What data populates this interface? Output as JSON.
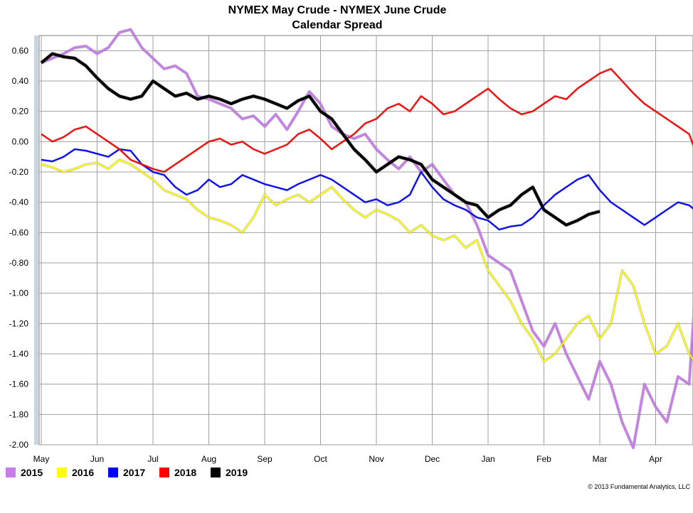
{
  "chart_data": {
    "type": "line",
    "title": "NYMEX May Crude - NYMEX June Crude",
    "subtitle": "Calendar Spread",
    "ylim": [
      -2.0,
      0.7
    ],
    "yticks": [
      "0.60",
      "0.40",
      "0.20",
      "0.00",
      "-0.20",
      "-0.40",
      "-0.60",
      "-0.80",
      "-1.00",
      "-1.20",
      "-1.40",
      "-1.60",
      "-1.80",
      "-2.00"
    ],
    "ytick_values": [
      0.6,
      0.4,
      0.2,
      0.0,
      -0.2,
      -0.4,
      -0.6,
      -0.8,
      -1.0,
      -1.2,
      -1.4,
      -1.6,
      -1.8,
      -2.0
    ],
    "x_categories": [
      "May",
      "Jun",
      "Jul",
      "Aug",
      "Sep",
      "Oct",
      "Nov",
      "Dec",
      "Jan",
      "Feb",
      "Mar",
      "Apr"
    ],
    "xlim": [
      0,
      11.7
    ],
    "grid": true,
    "legend_position": "bottom-left",
    "copyright": "© 2013 Fundamental Analytics, LLC",
    "series": [
      {
        "name": "2015",
        "color": "#c77ee8",
        "width": 3,
        "x": [
          0,
          0.2,
          0.4,
          0.6,
          0.8,
          1.0,
          1.2,
          1.4,
          1.6,
          1.8,
          2.0,
          2.2,
          2.4,
          2.6,
          2.8,
          3.0,
          3.2,
          3.4,
          3.6,
          3.8,
          4.0,
          4.2,
          4.4,
          4.6,
          4.8,
          5.0,
          5.2,
          5.4,
          5.6,
          5.8,
          6.0,
          6.2,
          6.4,
          6.6,
          6.8,
          7.0,
          7.2,
          7.4,
          7.6,
          7.8,
          8.0,
          8.2,
          8.4,
          8.6,
          8.8,
          9.0,
          9.2,
          9.4,
          9.6,
          9.8,
          10.0,
          10.2,
          10.4,
          10.6,
          10.8,
          11.0,
          11.2,
          11.4,
          11.6,
          11.7
        ],
        "y": [
          0.52,
          0.55,
          0.58,
          0.62,
          0.63,
          0.58,
          0.62,
          0.72,
          0.74,
          0.62,
          0.55,
          0.48,
          0.5,
          0.45,
          0.3,
          0.28,
          0.25,
          0.22,
          0.15,
          0.17,
          0.1,
          0.18,
          0.08,
          0.2,
          0.33,
          0.25,
          0.1,
          0.05,
          0.02,
          0.05,
          -0.05,
          -0.12,
          -0.18,
          -0.1,
          -0.2,
          -0.15,
          -0.25,
          -0.35,
          -0.4,
          -0.55,
          -0.75,
          -0.8,
          -0.85,
          -1.05,
          -1.25,
          -1.35,
          -1.2,
          -1.4,
          -1.55,
          -1.7,
          -1.45,
          -1.6,
          -1.85,
          -2.02,
          -1.6,
          -1.75,
          -1.85,
          -1.55,
          -1.6,
          -1.05
        ]
      },
      {
        "name": "2016",
        "color": "#ffff00",
        "width": 2,
        "x": [
          0,
          0.2,
          0.4,
          0.6,
          0.8,
          1.0,
          1.2,
          1.4,
          1.6,
          1.8,
          2.0,
          2.2,
          2.4,
          2.6,
          2.8,
          3.0,
          3.2,
          3.4,
          3.6,
          3.8,
          4.0,
          4.2,
          4.4,
          4.6,
          4.8,
          5.0,
          5.2,
          5.4,
          5.6,
          5.8,
          6.0,
          6.2,
          6.4,
          6.6,
          6.8,
          7.0,
          7.2,
          7.4,
          7.6,
          7.8,
          8.0,
          8.2,
          8.4,
          8.6,
          8.8,
          9.0,
          9.2,
          9.4,
          9.6,
          9.8,
          10.0,
          10.2,
          10.4,
          10.6,
          10.8,
          11.0,
          11.2,
          11.4,
          11.6,
          11.7
        ],
        "y": [
          -0.15,
          -0.17,
          -0.2,
          -0.18,
          -0.15,
          -0.14,
          -0.18,
          -0.12,
          -0.15,
          -0.2,
          -0.25,
          -0.32,
          -0.35,
          -0.38,
          -0.45,
          -0.5,
          -0.52,
          -0.55,
          -0.6,
          -0.5,
          -0.35,
          -0.42,
          -0.38,
          -0.35,
          -0.4,
          -0.35,
          -0.3,
          -0.38,
          -0.45,
          -0.5,
          -0.45,
          -0.48,
          -0.52,
          -0.6,
          -0.55,
          -0.62,
          -0.65,
          -0.62,
          -0.7,
          -0.65,
          -0.85,
          -0.95,
          -1.05,
          -1.2,
          -1.3,
          -1.45,
          -1.4,
          -1.3,
          -1.2,
          -1.15,
          -1.3,
          -1.2,
          -0.85,
          -0.95,
          -1.2,
          -1.4,
          -1.35,
          -1.2,
          -1.4,
          -1.45
        ]
      },
      {
        "name": "2017",
        "color": "#0000ff",
        "width": 2,
        "x": [
          0,
          0.2,
          0.4,
          0.6,
          0.8,
          1.0,
          1.2,
          1.4,
          1.6,
          1.8,
          2.0,
          2.2,
          2.4,
          2.6,
          2.8,
          3.0,
          3.2,
          3.4,
          3.6,
          3.8,
          4.0,
          4.2,
          4.4,
          4.6,
          4.8,
          5.0,
          5.2,
          5.4,
          5.6,
          5.8,
          6.0,
          6.2,
          6.4,
          6.6,
          6.8,
          7.0,
          7.2,
          7.4,
          7.6,
          7.8,
          8.0,
          8.2,
          8.4,
          8.6,
          8.8,
          9.0,
          9.2,
          9.4,
          9.6,
          9.8,
          10.0,
          10.2,
          10.4,
          10.6,
          10.8,
          11.0,
          11.2,
          11.4,
          11.6,
          11.7
        ],
        "y": [
          -0.12,
          -0.13,
          -0.1,
          -0.05,
          -0.06,
          -0.08,
          -0.1,
          -0.05,
          -0.06,
          -0.15,
          -0.2,
          -0.22,
          -0.3,
          -0.35,
          -0.32,
          -0.25,
          -0.3,
          -0.28,
          -0.22,
          -0.25,
          -0.28,
          -0.3,
          -0.32,
          -0.28,
          -0.25,
          -0.22,
          -0.25,
          -0.3,
          -0.35,
          -0.4,
          -0.38,
          -0.42,
          -0.4,
          -0.35,
          -0.2,
          -0.3,
          -0.38,
          -0.42,
          -0.45,
          -0.5,
          -0.52,
          -0.58,
          -0.56,
          -0.55,
          -0.5,
          -0.42,
          -0.35,
          -0.3,
          -0.25,
          -0.22,
          -0.32,
          -0.4,
          -0.45,
          -0.5,
          -0.55,
          -0.5,
          -0.45,
          -0.4,
          -0.42,
          -0.45
        ]
      },
      {
        "name": "2018",
        "color": "#ff0000",
        "width": 2,
        "x": [
          0,
          0.2,
          0.4,
          0.6,
          0.8,
          1.0,
          1.2,
          1.4,
          1.6,
          1.8,
          2.0,
          2.2,
          2.4,
          2.6,
          2.8,
          3.0,
          3.2,
          3.4,
          3.6,
          3.8,
          4.0,
          4.2,
          4.4,
          4.6,
          4.8,
          5.0,
          5.2,
          5.4,
          5.6,
          5.8,
          6.0,
          6.2,
          6.4,
          6.6,
          6.8,
          7.0,
          7.2,
          7.4,
          7.6,
          7.8,
          8.0,
          8.2,
          8.4,
          8.6,
          8.8,
          9.0,
          9.2,
          9.4,
          9.6,
          9.8,
          10.0,
          10.2,
          10.4,
          10.6,
          10.8,
          11.0,
          11.2,
          11.4,
          11.6,
          11.7
        ],
        "y": [
          0.05,
          0.0,
          0.03,
          0.08,
          0.1,
          0.05,
          0.0,
          -0.05,
          -0.12,
          -0.15,
          -0.18,
          -0.2,
          -0.15,
          -0.1,
          -0.05,
          0.0,
          0.02,
          -0.02,
          0.0,
          -0.05,
          -0.08,
          -0.05,
          -0.02,
          0.05,
          0.08,
          0.02,
          -0.05,
          0.0,
          0.05,
          0.12,
          0.15,
          0.22,
          0.25,
          0.2,
          0.3,
          0.25,
          0.18,
          0.2,
          0.25,
          0.3,
          0.35,
          0.28,
          0.22,
          0.18,
          0.2,
          0.25,
          0.3,
          0.28,
          0.35,
          0.4,
          0.45,
          0.48,
          0.4,
          0.32,
          0.25,
          0.2,
          0.15,
          0.1,
          0.05,
          -0.05
        ]
      },
      {
        "name": "2019",
        "color": "#000000",
        "width": 4,
        "x": [
          0,
          0.2,
          0.4,
          0.6,
          0.8,
          1.0,
          1.2,
          1.4,
          1.6,
          1.8,
          2.0,
          2.2,
          2.4,
          2.6,
          2.8,
          3.0,
          3.2,
          3.4,
          3.6,
          3.8,
          4.0,
          4.2,
          4.4,
          4.6,
          4.8,
          5.0,
          5.2,
          5.4,
          5.6,
          5.8,
          6.0,
          6.2,
          6.4,
          6.6,
          6.8,
          7.0,
          7.2,
          7.4,
          7.6,
          7.8,
          8.0,
          8.2,
          8.4,
          8.6,
          8.8,
          9.0,
          9.2,
          9.4,
          9.6,
          9.8,
          10.0,
          10.2,
          10.4,
          10.6,
          10.8,
          11.0,
          11.2,
          11.4,
          11.6,
          11.7
        ],
        "y": [
          0.52,
          0.58,
          0.56,
          0.55,
          0.5,
          0.42,
          0.35,
          0.3,
          0.28,
          0.3,
          0.4,
          0.35,
          0.3,
          0.32,
          0.28,
          0.3,
          0.28,
          0.25,
          0.28,
          0.3,
          0.28,
          0.25,
          0.22,
          0.27,
          0.3,
          0.2,
          0.15,
          0.05,
          -0.05,
          -0.12,
          -0.2,
          -0.15,
          -0.1,
          -0.12,
          -0.15,
          -0.25,
          -0.3,
          -0.35,
          -0.4,
          -0.42,
          -0.5,
          -0.45,
          -0.42,
          -0.35,
          -0.3,
          -0.45,
          -0.5,
          -0.55,
          -0.52,
          -0.48,
          -0.46,
          null,
          null,
          null,
          null,
          null,
          null,
          null,
          null,
          null
        ]
      }
    ]
  }
}
